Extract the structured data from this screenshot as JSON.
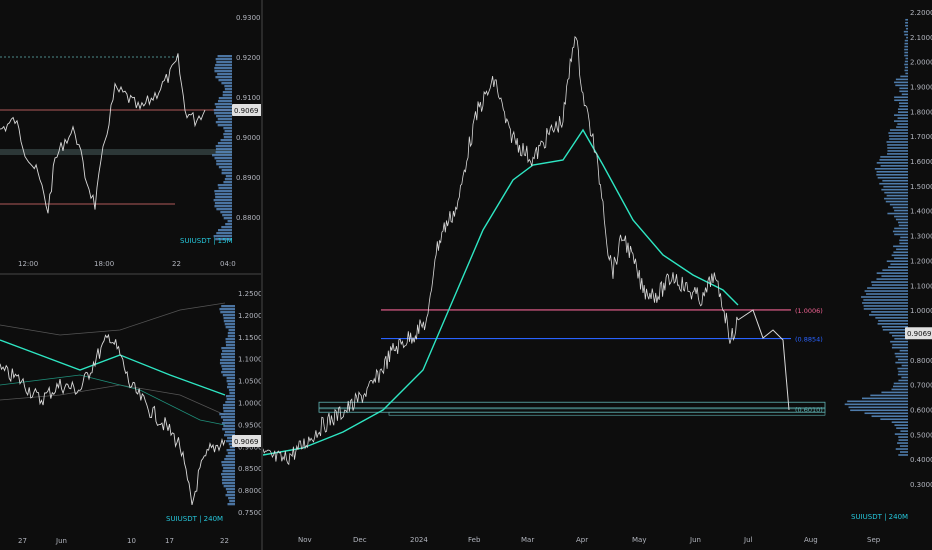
{
  "colors": {
    "background": "#0d0d0d",
    "price_line": "#d9d9d9",
    "ema": "#2ee6c3",
    "fib_top": "#f06292",
    "fib_mid": "#2962ff",
    "zone": "#5fb3b3",
    "volume": "#5b8fc7",
    "pink_line": "#e57373"
  },
  "top_left": {
    "symbol_tag": "SUIUSDT | 15M",
    "price_ticks": [
      "0.9300",
      "0.9200",
      "0.9100",
      "0.9000",
      "0.8900",
      "0.8800"
    ],
    "time_ticks": [
      "12:00",
      "18:00",
      "22",
      "04:0"
    ],
    "price_label": "0.9069"
  },
  "bottom_left": {
    "symbol_tag": "SUIUSDT | 240M",
    "price_ticks": [
      "1.2500",
      "1.2000",
      "1.1500",
      "1.1000",
      "1.0500",
      "1.0000",
      "0.9500",
      "0.9000",
      "0.8500",
      "0.8000",
      "0.7500"
    ],
    "time_ticks": [
      "27",
      "Jun",
      "10",
      "17",
      "22"
    ],
    "price_label": "0.9069"
  },
  "main": {
    "symbol_tag": "SUIUSDT | 240M",
    "price_ticks": [
      "2.2000",
      "2.1000",
      "2.0000",
      "1.9000",
      "1.8000",
      "1.7000",
      "1.6000",
      "1.5000",
      "1.4000",
      "1.3000",
      "1.2000",
      "1.1000",
      "1.0000",
      "0.9000",
      "0.8000",
      "0.7000",
      "0.6000",
      "0.5000",
      "0.4000",
      "0.3000"
    ],
    "time_ticks": [
      "Nov",
      "Dec",
      "2024",
      "Feb",
      "Mar",
      "Apr",
      "May",
      "Jun",
      "Jul",
      "Aug",
      "Sep"
    ],
    "price_label": "0.9069",
    "levels": [
      {
        "label": "(1.0006)",
        "value": 1.0006,
        "color": "#f06292"
      },
      {
        "label": "(0.8854)",
        "value": 0.8854,
        "color": "#2962ff"
      },
      {
        "label": "(0.6010)",
        "value": 0.601,
        "color": "#5fb3b3"
      }
    ]
  }
}
